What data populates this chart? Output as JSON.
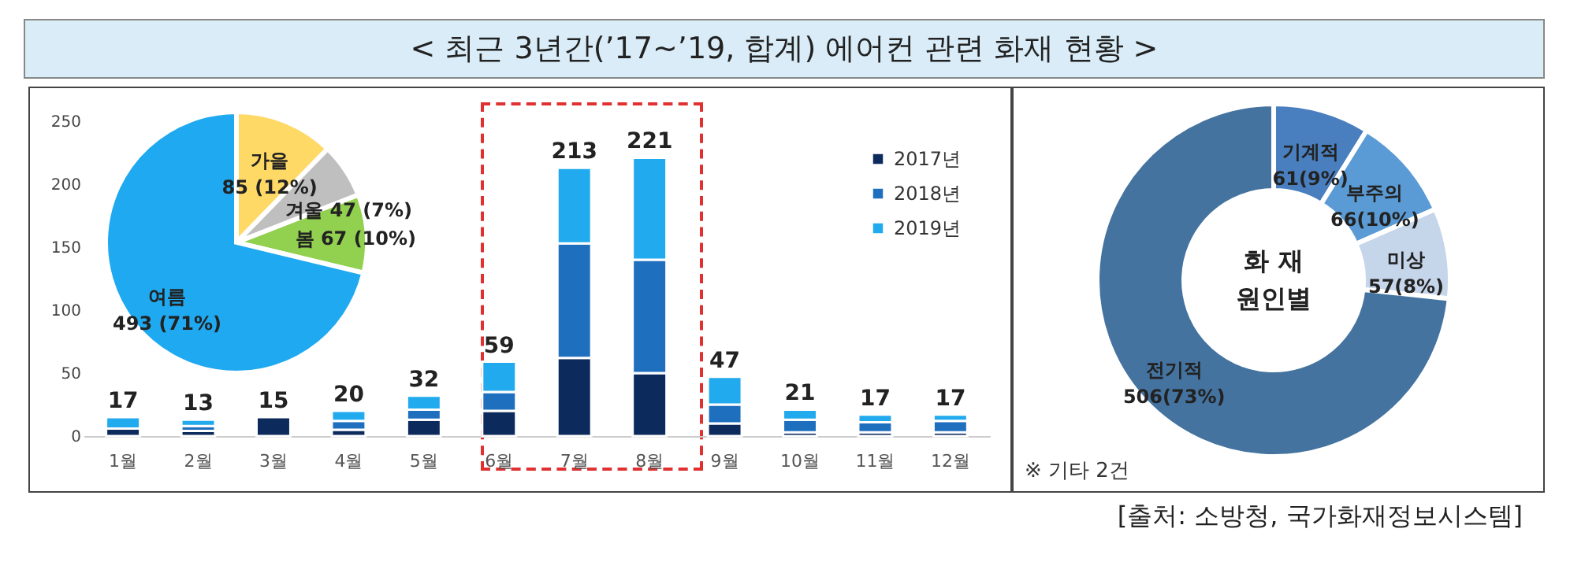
{
  "chart_data": [
    {
      "type": "bar",
      "title": "< 최근 3년간(’17~’19, 합계) 에어컨 관련 화재 현황 >",
      "categories": [
        "1월",
        "2월",
        "3월",
        "4월",
        "5월",
        "6월",
        "7월",
        "8월",
        "9월",
        "10월",
        "11월",
        "12월"
      ],
      "stacked": true,
      "ylim": [
        0,
        250
      ],
      "yticks": [
        0,
        50,
        100,
        150,
        200,
        250
      ],
      "legend": "top right",
      "totals": [
        "17",
        "13",
        "15",
        "20",
        "32",
        "59",
        "213",
        "221",
        "47",
        "21",
        "17",
        "17"
      ],
      "annotations": [
        "[출처: 소방청, 국가화재정보시스템]"
      ],
      "series": [
        {
          "name": "2017년",
          "color": "#0d2a5c",
          "values": [
            6,
            4,
            15,
            5,
            13,
            20,
            62,
            50,
            10,
            3,
            3,
            3
          ]
        },
        {
          "name": "2018년",
          "color": "#1f6fbf",
          "values": [
            null,
            4,
            null,
            7,
            8,
            15,
            91,
            90,
            15,
            10,
            8,
            9
          ]
        },
        {
          "name": "2019년",
          "color": "#22aaee",
          "values": [
            9,
            5,
            null,
            8,
            11,
            24,
            60,
            81,
            22,
            8,
            6,
            5
          ]
        }
      ]
    },
    {
      "type": "pie",
      "categories": [
        "가을",
        "겨울",
        "봄",
        "여름"
      ],
      "values": [
        85,
        47,
        67,
        493
      ],
      "colors": [
        "#ffd966",
        "#bfbfbf",
        "#92d050",
        "#1fa9f0"
      ],
      "value_labels": [
        "85 (12%)",
        "47 (7%)",
        "67 (10%)",
        "493 (71%)"
      ]
    },
    {
      "type": "donut",
      "title": "화 재 원인별",
      "categories": [
        "기계적",
        "부주의",
        "미상",
        "전기적"
      ],
      "values": [
        61,
        66,
        57,
        506
      ],
      "colors": [
        "#4a7fbf",
        "#5b9bd5",
        "#c5d5ea",
        "#44739f"
      ],
      "value_labels": [
        "61(9%)",
        "66(10%)",
        "57(8%)",
        "506(73%)"
      ],
      "annotations": [
        "※ 기타 2건"
      ]
    }
  ]
}
